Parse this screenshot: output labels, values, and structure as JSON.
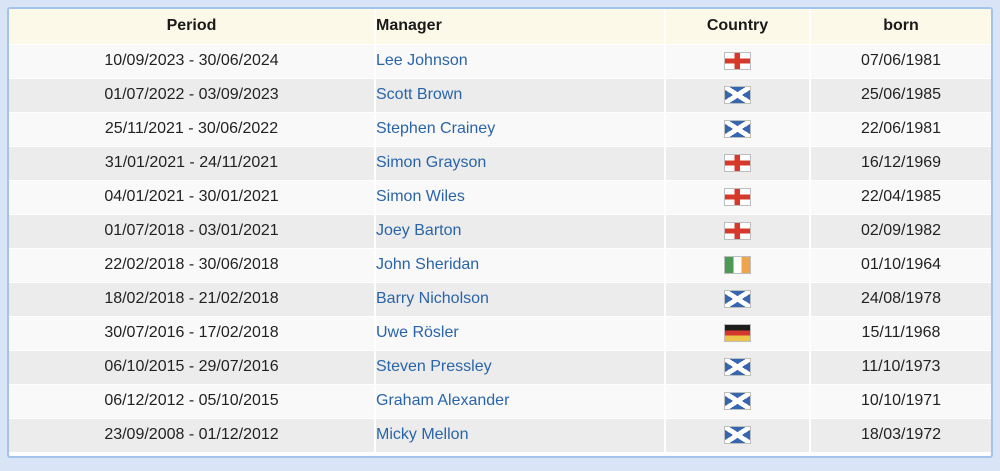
{
  "colors": {
    "page_background": "#d9e5f7",
    "panel_border": "#a4c3ea",
    "header_background": "#fcf9e8",
    "row_odd": "#f9f9f9",
    "row_even": "#ececec",
    "link": "#2a64a8",
    "text": "#222222"
  },
  "table": {
    "headers": {
      "period": "Period",
      "manager": "Manager",
      "country": "Country",
      "born": "born"
    },
    "flag_icons": {
      "england": "flag-england-icon",
      "scotland": "flag-scotland-icon",
      "ireland": "flag-ireland-icon",
      "germany": "flag-germany-icon"
    },
    "flag_colors": {
      "england_cross_red": "#d6392c",
      "scotland_blue": "#3766b0",
      "ireland_green": "#4b9a56",
      "ireland_orange": "#eda44c",
      "germany_black": "#1d1d1b",
      "germany_red": "#d3372e",
      "germany_gold": "#eec34a"
    },
    "rows": [
      {
        "period": "10/09/2023 - 30/06/2024",
        "manager": "Lee Johnson",
        "country": "england",
        "born": "07/06/1981"
      },
      {
        "period": "01/07/2022 - 03/09/2023",
        "manager": "Scott Brown",
        "country": "scotland",
        "born": "25/06/1985"
      },
      {
        "period": "25/11/2021 - 30/06/2022",
        "manager": "Stephen Crainey",
        "country": "scotland",
        "born": "22/06/1981"
      },
      {
        "period": "31/01/2021 - 24/11/2021",
        "manager": "Simon Grayson",
        "country": "england",
        "born": "16/12/1969"
      },
      {
        "period": "04/01/2021 - 30/01/2021",
        "manager": "Simon Wiles",
        "country": "england",
        "born": "22/04/1985"
      },
      {
        "period": "01/07/2018 - 03/01/2021",
        "manager": "Joey Barton",
        "country": "england",
        "born": "02/09/1982"
      },
      {
        "period": "22/02/2018 - 30/06/2018",
        "manager": "John Sheridan",
        "country": "ireland",
        "born": "01/10/1964"
      },
      {
        "period": "18/02/2018 - 21/02/2018",
        "manager": "Barry Nicholson",
        "country": "scotland",
        "born": "24/08/1978"
      },
      {
        "period": "30/07/2016 - 17/02/2018",
        "manager": "Uwe Rösler",
        "country": "germany",
        "born": "15/11/1968"
      },
      {
        "period": "06/10/2015 - 29/07/2016",
        "manager": "Steven Pressley",
        "country": "scotland",
        "born": "11/10/1973"
      },
      {
        "period": "06/12/2012 - 05/10/2015",
        "manager": "Graham Alexander",
        "country": "scotland",
        "born": "10/10/1971"
      },
      {
        "period": "23/09/2008 - 01/12/2012",
        "manager": "Micky Mellon",
        "country": "scotland",
        "born": "18/03/1972"
      }
    ]
  }
}
